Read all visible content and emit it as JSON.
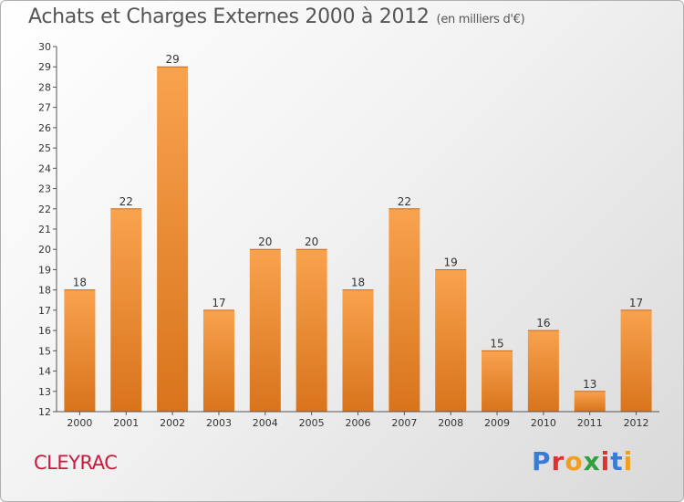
{
  "header": {
    "title": "Achats et Charges Externes 2000 à 2012",
    "unit": "(en milliers d'€)"
  },
  "footer": {
    "commune": "CLEYRAC",
    "logo_text": "Proxiti",
    "logo_colors": [
      "#3a7bd5",
      "#e03030",
      "#f0a020",
      "#30a040",
      "#e03030",
      "#3a7bd5",
      "#f0a020"
    ]
  },
  "colors": {
    "bar_light": "#f9a24e",
    "bar_dark": "#d8741c",
    "axis": "#555555",
    "commune": "#c8183c"
  },
  "chart_data": {
    "type": "bar",
    "title": "Achats et Charges Externes 2000 à 2012",
    "subtitle": "(en milliers d'€)",
    "xlabel": "",
    "ylabel": "",
    "ylim": [
      12,
      30
    ],
    "yticks": [
      12,
      13,
      14,
      15,
      16,
      17,
      18,
      19,
      20,
      21,
      22,
      23,
      24,
      25,
      26,
      27,
      28,
      29,
      30
    ],
    "categories": [
      "2000",
      "2001",
      "2002",
      "2003",
      "2004",
      "2005",
      "2006",
      "2007",
      "2008",
      "2009",
      "2010",
      "2011",
      "2012"
    ],
    "values": [
      18,
      22,
      29,
      17,
      20,
      20,
      18,
      22,
      19,
      15,
      16,
      13,
      17
    ],
    "grid": false,
    "data_labels": true
  }
}
